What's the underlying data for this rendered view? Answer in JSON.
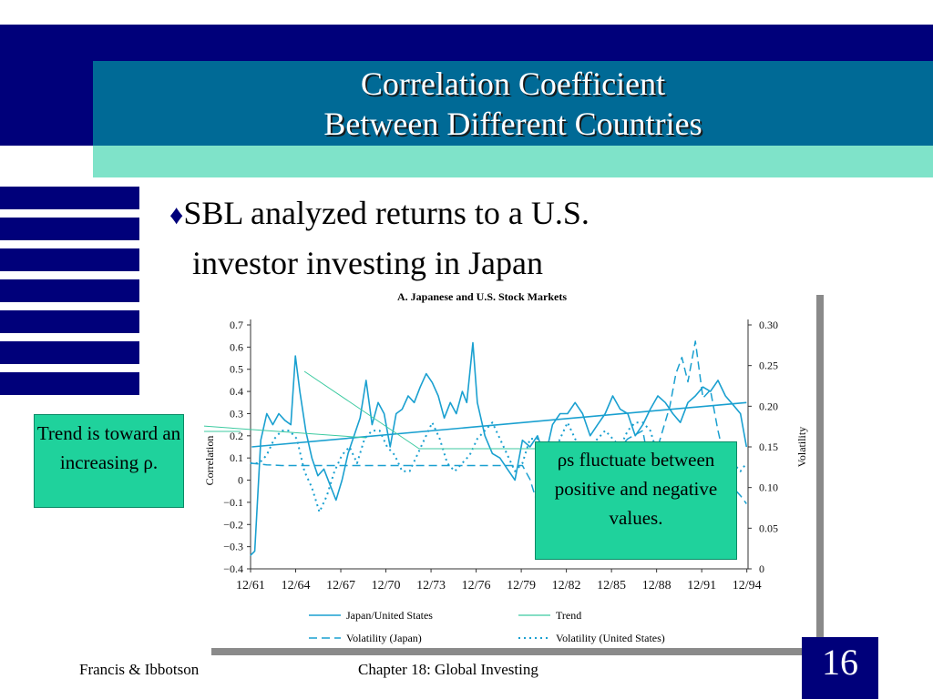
{
  "slide": {
    "title_line1": "Correlation Coefficient",
    "title_line2": "Between Different Countries",
    "bullet_line1": "SBL analyzed returns to a U.S.",
    "bullet_line2": "investor investing in Japan",
    "callout_trend": "Trend is toward an increasing ρ.",
    "callout_rho": "ρs fluctuate between positive and negative values.",
    "footer_left": "Francis & Ibbotson",
    "footer_center": "Chapter 18:  Global Investing",
    "page_number": "16"
  },
  "colors": {
    "navy": "#00007a",
    "teal": "#006a96",
    "mint": "#7fe3c9",
    "callout_green": "#1fd29c",
    "series_blue": "#1aa0d0",
    "trend_green": "#3ccaa0"
  },
  "icons": {
    "bullet": "diamond-icon"
  },
  "chart_data": {
    "type": "line",
    "title": "A.  Japanese and U.S. Stock Markets",
    "ylabel": "Correlation",
    "y2label": "Volatility",
    "ylim": [
      -0.4,
      0.7
    ],
    "y2lim": [
      0,
      0.3
    ],
    "xlim": [
      1961.92,
      1995.0
    ],
    "x_ticks": [
      "12/61",
      "12/64",
      "12/67",
      "12/70",
      "12/73",
      "12/76",
      "12/79",
      "12/82",
      "12/85",
      "12/88",
      "12/91",
      "12/94"
    ],
    "y_ticks": [
      "0.7",
      "0.6",
      "0.5",
      "0.4",
      "0.3",
      "0.2",
      "0.1",
      "0",
      "−0.1",
      "−0.2",
      "−0.3",
      "−0.4"
    ],
    "y2_ticks": [
      "0.30",
      "0.25",
      "0.20",
      "0.15",
      "0.10",
      "0.05",
      "0"
    ],
    "legend": [
      "Japan/United States",
      "Trend",
      "Volatility (Japan)",
      "Volatility (United States)"
    ],
    "series": [
      {
        "name": "Japan/United States",
        "axis": "left",
        "style": "solid",
        "x": [
          1961.9,
          1962.2,
          1962.6,
          1963.0,
          1963.4,
          1963.8,
          1964.2,
          1964.6,
          1964.9,
          1965.2,
          1965.6,
          1966.0,
          1966.4,
          1966.8,
          1967.2,
          1967.6,
          1968.0,
          1968.4,
          1968.8,
          1969.2,
          1969.6,
          1970.0,
          1970.4,
          1970.8,
          1971.2,
          1971.6,
          1972.0,
          1972.4,
          1972.8,
          1973.2,
          1973.6,
          1974.0,
          1974.4,
          1974.8,
          1975.2,
          1975.6,
          1976.0,
          1976.3,
          1976.7,
          1977.0,
          1977.5,
          1978.0,
          1978.5,
          1979.0,
          1979.5,
          1980.0,
          1980.5,
          1981.0,
          1981.5,
          1982.0,
          1982.5,
          1983.0,
          1983.5,
          1984.0,
          1984.5,
          1985.0,
          1985.5,
          1986.0,
          1986.5,
          1987.0,
          1987.5,
          1988.0,
          1988.5,
          1989.0,
          1989.5,
          1990.0,
          1990.5,
          1991.0,
          1991.5,
          1992.0,
          1992.5,
          1993.0,
          1993.5,
          1994.0,
          1994.5,
          1994.9
        ],
        "y": [
          -0.34,
          -0.32,
          0.18,
          0.3,
          0.25,
          0.3,
          0.27,
          0.25,
          0.56,
          0.4,
          0.22,
          0.1,
          0.02,
          0.05,
          -0.02,
          -0.09,
          0.0,
          0.12,
          0.2,
          0.28,
          0.45,
          0.25,
          0.35,
          0.3,
          0.15,
          0.3,
          0.32,
          0.38,
          0.35,
          0.42,
          0.48,
          0.44,
          0.38,
          0.28,
          0.35,
          0.3,
          0.4,
          0.35,
          0.62,
          0.35,
          0.2,
          0.12,
          0.1,
          0.05,
          0.0,
          0.18,
          0.15,
          0.2,
          0.1,
          0.25,
          0.3,
          0.3,
          0.35,
          0.3,
          0.2,
          0.25,
          0.3,
          0.38,
          0.32,
          0.3,
          0.2,
          0.25,
          0.32,
          0.38,
          0.35,
          0.3,
          0.26,
          0.35,
          0.38,
          0.42,
          0.4,
          0.45,
          0.38,
          0.34,
          0.3,
          0.15
        ]
      },
      {
        "name": "Trend",
        "axis": "left",
        "style": "solid",
        "x": [
          1962.0,
          1994.9
        ],
        "y": [
          0.15,
          0.35
        ]
      },
      {
        "name": "Volatility (Japan)",
        "axis": "right",
        "style": "dashed",
        "x": [
          1961.9,
          1963.0,
          1964.0,
          1965.0,
          1966.0,
          1967.0,
          1968.0,
          1969.0,
          1970.0,
          1971.0,
          1972.0,
          1973.0,
          1974.0,
          1975.0,
          1976.0,
          1977.0,
          1978.0,
          1979.0,
          1980.0,
          1980.5,
          1981.0,
          1981.6,
          1982.0,
          1983.0,
          1984.0,
          1985.0,
          1986.0,
          1987.0,
          1988.0,
          1988.5,
          1989.0,
          1989.8,
          1990.2,
          1990.6,
          1991.0,
          1991.5,
          1992.0,
          1992.5,
          1993.0,
          1993.5,
          1994.0,
          1994.5,
          1994.9
        ],
        "y": [
          0.13,
          0.128,
          0.127,
          0.127,
          0.127,
          0.127,
          0.127,
          0.127,
          0.127,
          0.127,
          0.127,
          0.127,
          0.127,
          0.127,
          0.127,
          0.127,
          0.127,
          0.127,
          0.127,
          0.11,
          0.08,
          0.06,
          0.08,
          0.09,
          0.1,
          0.12,
          0.14,
          0.16,
          0.17,
          0.12,
          0.15,
          0.2,
          0.24,
          0.26,
          0.23,
          0.28,
          0.21,
          0.22,
          0.17,
          0.13,
          0.1,
          0.09,
          0.08
        ]
      },
      {
        "name": "Volatility (United States)",
        "axis": "right",
        "style": "dotted",
        "x": [
          1961.9,
          1962.5,
          1963.0,
          1963.5,
          1964.0,
          1964.5,
          1965.0,
          1965.5,
          1966.0,
          1966.5,
          1967.0,
          1967.5,
          1968.0,
          1968.5,
          1969.0,
          1969.5,
          1970.0,
          1970.5,
          1971.0,
          1971.5,
          1972.0,
          1972.5,
          1973.0,
          1973.5,
          1974.0,
          1974.5,
          1975.0,
          1975.5,
          1976.0,
          1976.5,
          1977.0,
          1977.5,
          1978.0,
          1978.5,
          1979.0,
          1979.5,
          1980.0,
          1980.5,
          1981.0,
          1981.5,
          1982.0,
          1982.5,
          1983.0,
          1983.5,
          1984.0,
          1984.5,
          1985.0,
          1985.5,
          1986.0,
          1986.5,
          1987.0,
          1987.5,
          1988.0,
          1988.5,
          1989.0,
          1989.5,
          1990.0,
          1990.5,
          1991.0,
          1991.5,
          1992.0,
          1992.5,
          1993.0,
          1993.5,
          1994.0,
          1994.5,
          1994.9
        ],
        "y": [
          0.13,
          0.13,
          0.14,
          0.16,
          0.17,
          0.17,
          0.16,
          0.12,
          0.1,
          0.07,
          0.09,
          0.12,
          0.14,
          0.15,
          0.13,
          0.16,
          0.17,
          0.17,
          0.15,
          0.14,
          0.12,
          0.12,
          0.14,
          0.16,
          0.18,
          0.16,
          0.13,
          0.12,
          0.13,
          0.14,
          0.16,
          0.17,
          0.18,
          0.16,
          0.14,
          0.12,
          0.13,
          0.16,
          0.16,
          0.15,
          0.14,
          0.16,
          0.18,
          0.16,
          0.14,
          0.15,
          0.16,
          0.17,
          0.16,
          0.15,
          0.17,
          0.18,
          0.18,
          0.17,
          0.14,
          0.12,
          0.11,
          0.12,
          0.13,
          0.13,
          0.12,
          0.13,
          0.14,
          0.14,
          0.13,
          0.12,
          0.13
        ]
      }
    ]
  }
}
